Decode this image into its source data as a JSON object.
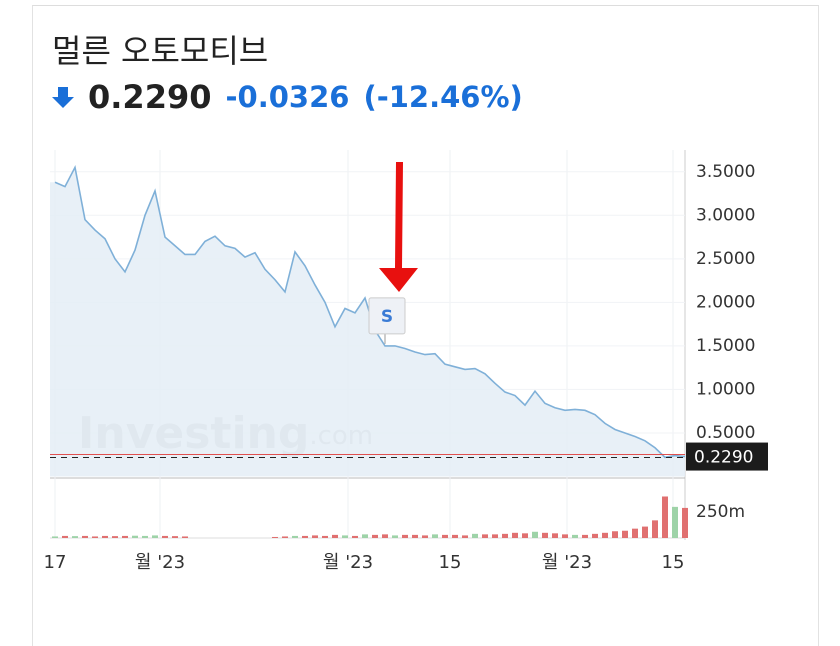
{
  "header": {
    "title": "멀른 오토모티브",
    "change": "-0.0326",
    "change_pct": "(-12.46%)"
  },
  "chart_data": {
    "type": "area",
    "watermark": "Investing",
    "watermark_suffix": ".com",
    "color": "#7fb0d8",
    "fill": "#e4edf6",
    "series": [
      {
        "values": [
          3.38,
          3.33,
          3.55,
          2.95,
          2.83,
          2.73,
          2.5,
          2.35,
          2.6,
          3.0,
          3.28,
          2.75,
          2.65,
          2.55,
          2.55,
          2.7,
          2.76,
          2.65,
          2.62,
          2.52,
          2.57,
          2.38,
          2.26,
          2.12,
          2.58,
          2.42,
          2.2,
          2.0,
          1.72,
          1.93,
          1.88,
          2.05,
          1.68,
          1.5,
          1.5,
          1.47,
          1.43,
          1.4,
          1.41,
          1.29,
          1.26,
          1.23,
          1.24,
          1.18,
          1.07,
          0.97,
          0.93,
          0.82,
          0.98,
          0.84,
          0.79,
          0.76,
          0.77,
          0.76,
          0.71,
          0.61,
          0.54,
          0.5,
          0.46,
          0.41,
          0.33,
          0.22,
          0.24,
          0.229
        ]
      }
    ],
    "xlim": [
      0,
      63
    ],
    "xticks": [
      {
        "value": 0,
        "label": "17"
      },
      {
        "value": 10.5,
        "label": "월 '23"
      },
      {
        "value": 29.3,
        "label": "월 '23"
      },
      {
        "value": 39.5,
        "label": "15"
      },
      {
        "value": 51.2,
        "label": "월 '23"
      },
      {
        "value": 61.8,
        "label": "15"
      }
    ],
    "ylim": [
      0,
      3.75
    ],
    "yticks": [
      {
        "value": 3.5,
        "label": "3.5000"
      },
      {
        "value": 3.0,
        "label": "3.0000"
      },
      {
        "value": 2.5,
        "label": "2.5000"
      },
      {
        "value": 2.0,
        "label": "2.0000"
      },
      {
        "value": 1.5,
        "label": "1.5000"
      },
      {
        "value": 1.0,
        "label": "1.0000"
      },
      {
        "value": 0.5,
        "label": "0.5000"
      }
    ],
    "last_price": {
      "value": 0.229,
      "label": "0.2290"
    },
    "annotations": [
      {
        "label": "S",
        "index": 33
      }
    ],
    "volume": {
      "up_color": "#9ed3a8",
      "down_color": "#e07070",
      "values": [
        15,
        20,
        18,
        20,
        15,
        20,
        18,
        20,
        22,
        20,
        25,
        20,
        18,
        15,
        0,
        0,
        0,
        0,
        0,
        0,
        0,
        0,
        10,
        15,
        20,
        20,
        25,
        20,
        30,
        25,
        20,
        35,
        30,
        35,
        25,
        30,
        30,
        25,
        35,
        30,
        30,
        25,
        40,
        35,
        35,
        40,
        50,
        45,
        60,
        50,
        45,
        35,
        30,
        30,
        40,
        50,
        65,
        70,
        90,
        110,
        170,
        400,
        300,
        290
      ],
      "ylim": [
        0,
        530
      ],
      "yticks": [
        {
          "value": 250,
          "label": "250m"
        }
      ]
    }
  }
}
